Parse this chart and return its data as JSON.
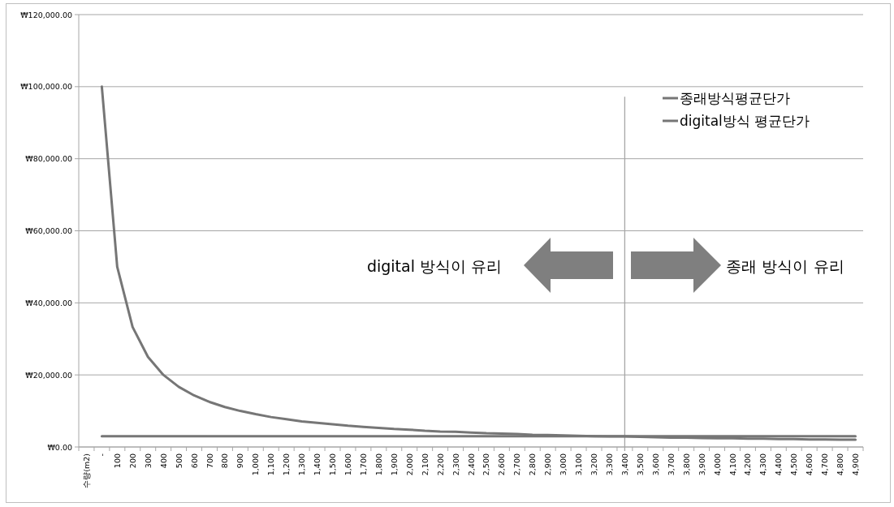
{
  "chart_data": {
    "type": "line",
    "categories": [
      "수량(m2)",
      "-",
      "100",
      "200",
      "300",
      "400",
      "500",
      "600",
      "700",
      "800",
      "900",
      "1,000",
      "1,100",
      "1,200",
      "1,300",
      "1,400",
      "1,500",
      "1,600",
      "1,700",
      "1,800",
      "1,900",
      "2,000",
      "2,100",
      "2,200",
      "2,300",
      "2,400",
      "2,500",
      "2,600",
      "2,700",
      "2,800",
      "2,900",
      "3,000",
      "3,100",
      "3,200",
      "3,300",
      "3,400",
      "3,500",
      "3,600",
      "3,700",
      "3,800",
      "3,900",
      "4,000",
      "4,100",
      "4,200",
      "4,300",
      "4,400",
      "4,500",
      "4,600",
      "4,700",
      "4,800",
      "4,900"
    ],
    "series": [
      {
        "name": "종래방식평균단가",
        "color": "#767676",
        "values": [
          null,
          100000,
          50000,
          33300,
          25000,
          20000,
          16700,
          14300,
          12500,
          11100,
          10000,
          9100,
          8300,
          7700,
          7100,
          6700,
          6300,
          5900,
          5600,
          5300,
          5000,
          4800,
          4500,
          4300,
          4200,
          4000,
          3800,
          3700,
          3600,
          3400,
          3300,
          3200,
          3100,
          3000,
          2900,
          2900,
          2800,
          2700,
          2600,
          2600,
          2500,
          2400,
          2400,
          2300,
          2300,
          2200,
          2200,
          2100,
          2100,
          2000,
          2000
        ]
      },
      {
        "name": "digital방식 평균단가",
        "color": "#767676",
        "values": [
          null,
          3000,
          3000,
          3000,
          3000,
          3000,
          3000,
          3000,
          3000,
          3000,
          3000,
          3000,
          3000,
          3000,
          3000,
          3000,
          3000,
          3000,
          3000,
          3000,
          3000,
          3000,
          3000,
          3000,
          3000,
          3000,
          3000,
          3000,
          3000,
          3000,
          3000,
          3000,
          3000,
          3000,
          3000,
          3000,
          3000,
          3000,
          3000,
          3000,
          3000,
          3000,
          3000,
          3000,
          3000,
          3000,
          3000,
          3000,
          3000,
          3000,
          3000
        ]
      }
    ],
    "ylim": [
      0,
      120000
    ],
    "yticks": [
      {
        "value": 0,
        "label": "₩0.00"
      },
      {
        "value": 20000,
        "label": "₩20,000.00"
      },
      {
        "value": 40000,
        "label": "₩40,000.00"
      },
      {
        "value": 60000,
        "label": "₩60,000.00"
      },
      {
        "value": 80000,
        "label": "₩80,000.00"
      },
      {
        "value": 100000,
        "label": "₩100,000.00"
      },
      {
        "value": 120000,
        "label": "₩120,000.00"
      }
    ],
    "grid": "y",
    "legend": "top right",
    "marker": "none",
    "line_style": "solid",
    "ref_lines": [
      {
        "axis": "x",
        "value": "3,400",
        "color": "#a6a6a6"
      }
    ],
    "annotations": [
      "digital 방식이 유리",
      "종래 방식이 유리"
    ]
  }
}
